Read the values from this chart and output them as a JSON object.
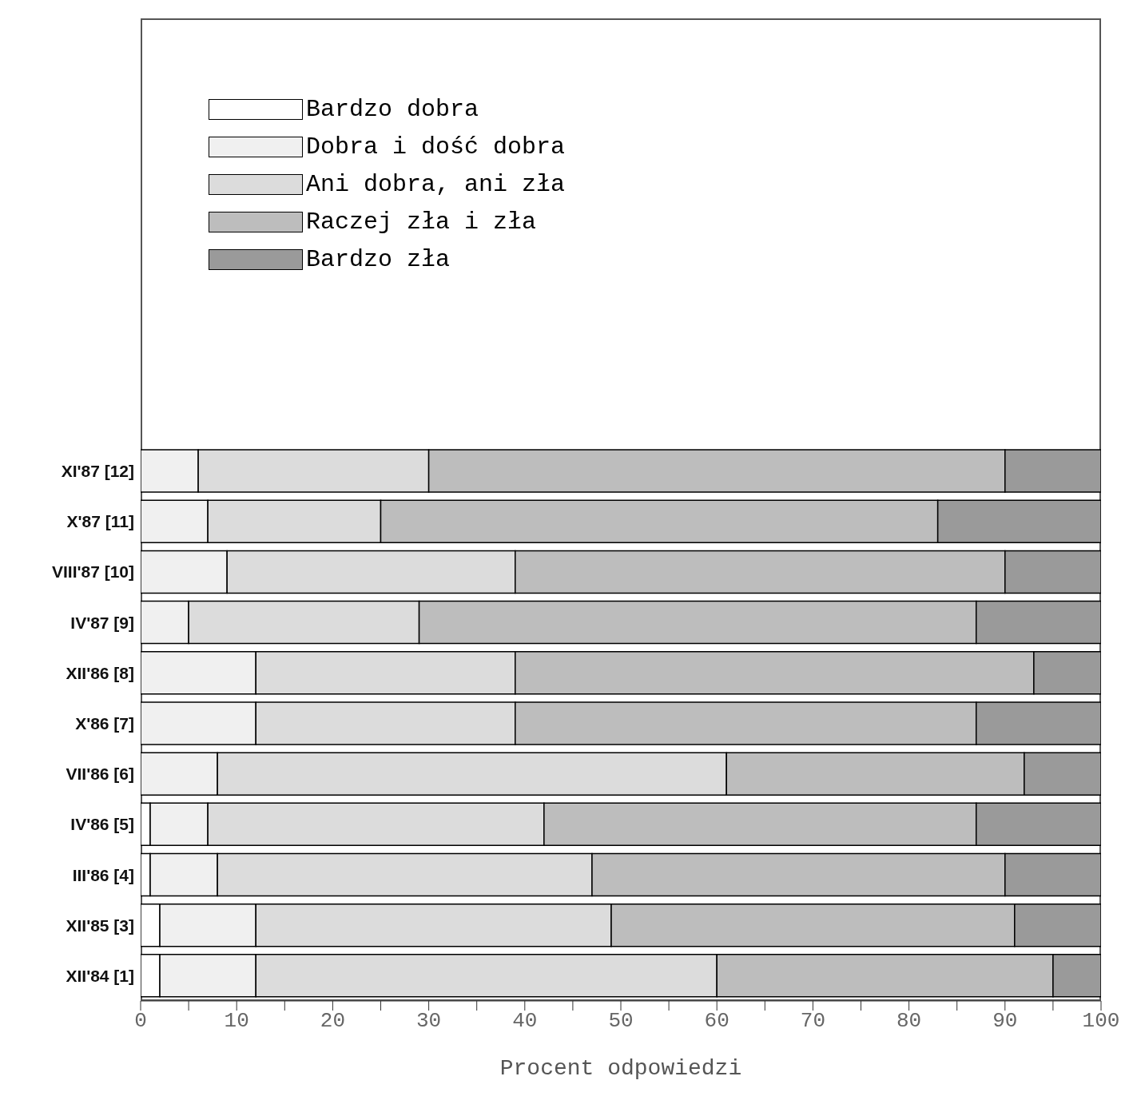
{
  "chart_data": {
    "type": "bar",
    "orientation": "horizontal",
    "stacked": true,
    "xlabel": "Procent odpowiedzi",
    "categories": [
      "XI'87 [12]",
      "X'87 [11]",
      "VIII'87 [10]",
      "IV'87 [9]",
      "XII'86 [8]",
      "X'86 [7]",
      "VII'86 [6]",
      "IV'86 [5]",
      "III'86 [4]",
      "XII'85 [3]",
      "XII'84 [1]"
    ],
    "series": [
      {
        "name": "Bardzo dobra",
        "color": "#ffffff",
        "values": [
          0,
          0,
          0,
          0,
          0,
          0,
          0,
          1,
          1,
          2,
          2
        ]
      },
      {
        "name": "Dobra i dość dobra",
        "color": "#f0f0f0",
        "values": [
          6,
          7,
          9,
          5,
          12,
          12,
          8,
          6,
          7,
          10,
          10
        ]
      },
      {
        "name": "Ani dobra, ani zła",
        "color": "#dcdcdc",
        "values": [
          24,
          18,
          30,
          24,
          27,
          27,
          53,
          35,
          39,
          37,
          48
        ]
      },
      {
        "name": "Raczej zła i zła",
        "color": "#bdbdbd",
        "values": [
          60,
          58,
          51,
          58,
          54,
          48,
          31,
          45,
          43,
          42,
          35
        ]
      },
      {
        "name": "Bardzo zła",
        "color": "#9a9a9a",
        "values": [
          10,
          17,
          10,
          13,
          7,
          13,
          8,
          13,
          10,
          9,
          5
        ]
      }
    ],
    "xlim": [
      0,
      100
    ],
    "xticks": [
      0,
      {
        "value": 5,
        "label": null
      },
      10,
      {
        "value": 15,
        "label": null
      },
      20,
      {
        "value": 25,
        "label": null
      },
      30,
      {
        "value": 35,
        "label": null
      },
      40,
      {
        "value": 45,
        "label": null
      },
      50,
      {
        "value": 55,
        "label": null
      },
      60,
      {
        "value": 65,
        "label": null
      },
      70,
      {
        "value": 75,
        "label": null
      },
      80,
      {
        "value": 85,
        "label": null
      },
      90,
      {
        "value": 95,
        "label": null
      },
      100
    ],
    "grid": false,
    "legend": "top left"
  }
}
